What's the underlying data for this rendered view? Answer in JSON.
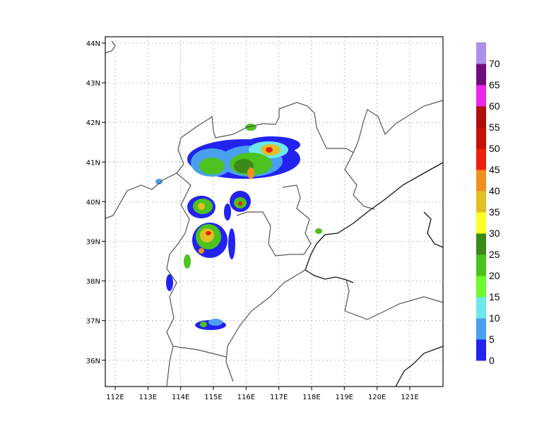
{
  "map": {
    "lon_labels": [
      "112E",
      "113E",
      "114E",
      "115E",
      "116E",
      "117E",
      "118E",
      "119E",
      "120E",
      "121E"
    ],
    "lat_labels": [
      "44N",
      "43N",
      "42N",
      "41N",
      "40N",
      "39N",
      "38N",
      "37N",
      "36N"
    ],
    "lon_range": [
      111.7,
      121.85
    ],
    "lat_range": [
      35.35,
      44.15
    ],
    "gridlines": true,
    "field": "radar reflectivity (filled), concentrated near 114-117E, 38.5-41.5N"
  },
  "colorbar": {
    "labels": [
      "0",
      "5",
      "10",
      "15",
      "20",
      "25",
      "30",
      "35",
      "40",
      "45",
      "50",
      "55",
      "60",
      "65",
      "70"
    ],
    "colors": [
      "#2323f0",
      "#4aa0ee",
      "#6ce8ea",
      "#6cf92e",
      "#4cc21e",
      "#3a8a1a",
      "#fefe2a",
      "#e2bf22",
      "#ee9020",
      "#ec2010",
      "#c81008",
      "#ac1008",
      "#ea28e8",
      "#6e0c7c",
      "#ac90e8"
    ],
    "placement": "right"
  }
}
